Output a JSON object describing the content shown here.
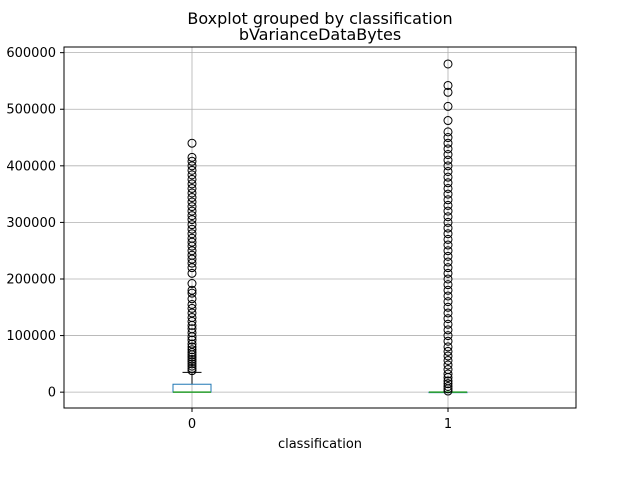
{
  "chart_data": {
    "type": "boxplot",
    "suptitle": "Boxplot grouped by classification",
    "title": "bVarianceDataBytes",
    "xlabel": "classification",
    "ylabel": "",
    "grid": true,
    "ylim": [
      -28000,
      610000
    ],
    "yticks": [
      0,
      100000,
      200000,
      300000,
      400000,
      500000,
      600000
    ],
    "ytick_labels": [
      "0",
      "100000",
      "200000",
      "300000",
      "400000",
      "500000",
      "600000"
    ],
    "categories": [
      "0",
      "1"
    ],
    "boxes": [
      {
        "category": "0",
        "whisker_low": 0,
        "q1": 0,
        "median": 0,
        "q3": 14000,
        "whisker_high": 35000,
        "outliers": [
          38000,
          42000,
          46000,
          50000,
          54000,
          58000,
          62000,
          66000,
          70000,
          75000,
          80000,
          85000,
          92000,
          98000,
          105000,
          112000,
          118000,
          125000,
          132000,
          140000,
          148000,
          155000,
          165000,
          175000,
          180000,
          192000,
          210000,
          220000,
          228000,
          235000,
          242000,
          250000,
          258000,
          265000,
          272000,
          280000,
          288000,
          296000,
          305000,
          312000,
          320000,
          328000,
          336000,
          344000,
          352000,
          360000,
          368000,
          376000,
          384000,
          392000,
          400000,
          408000,
          415000,
          440000
        ]
      },
      {
        "category": "1",
        "whisker_low": 0,
        "q1": 0,
        "median": 0,
        "q3": 0,
        "whisker_high": 0,
        "outliers": [
          2000,
          6000,
          10000,
          15000,
          20000,
          26000,
          32000,
          40000,
          48000,
          56000,
          64000,
          72000,
          80000,
          90000,
          100000,
          110000,
          120000,
          130000,
          140000,
          150000,
          160000,
          170000,
          180000,
          190000,
          200000,
          210000,
          220000,
          230000,
          240000,
          250000,
          260000,
          270000,
          280000,
          290000,
          300000,
          310000,
          320000,
          330000,
          340000,
          350000,
          360000,
          370000,
          380000,
          390000,
          400000,
          410000,
          420000,
          430000,
          440000,
          450000,
          460000,
          480000,
          505000,
          530000,
          542000,
          580000
        ]
      }
    ],
    "colors": {
      "box": "#1f77b4",
      "median": "#2ca02c",
      "whisker": "#000000",
      "grid": "#b0b0b0"
    }
  }
}
